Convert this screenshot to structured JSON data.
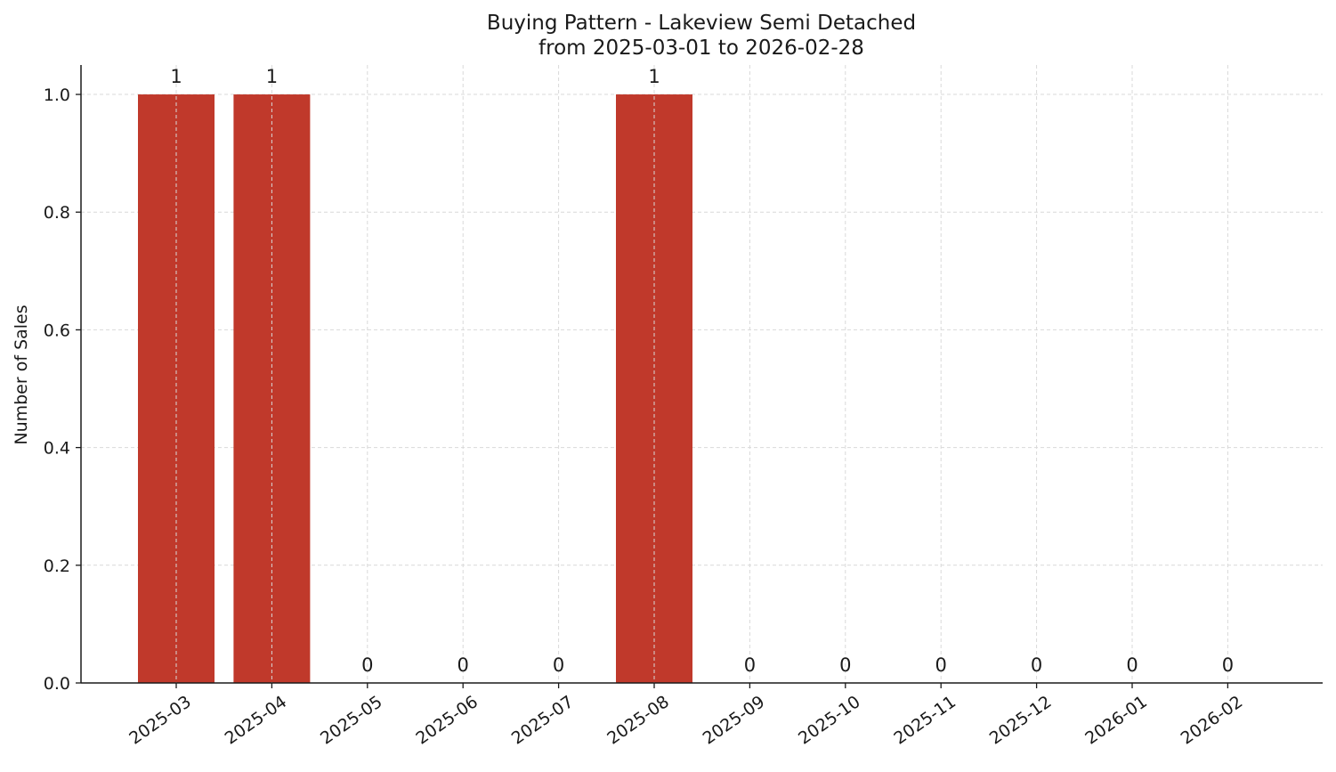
{
  "chart_data": {
    "type": "bar",
    "title": "Buying Pattern - Lakeview Semi Detached",
    "subtitle": "from 2025-03-01 to 2026-02-28",
    "xlabel": "",
    "ylabel": "Number of Sales",
    "categories": [
      "2025-03",
      "2025-04",
      "2025-05",
      "2025-06",
      "2025-07",
      "2025-08",
      "2025-09",
      "2025-10",
      "2025-11",
      "2025-12",
      "2026-01",
      "2026-02"
    ],
    "values": [
      1,
      1,
      0,
      0,
      0,
      1,
      0,
      0,
      0,
      0,
      0,
      0
    ],
    "data_labels": [
      "1",
      "1",
      "0",
      "0",
      "0",
      "1",
      "0",
      "0",
      "0",
      "0",
      "0",
      "0"
    ],
    "ylim": [
      0,
      1.05
    ],
    "yticks": [
      "0.0",
      "0.2",
      "0.4",
      "0.6",
      "0.8",
      "1.0"
    ],
    "ytick_values": [
      0,
      0.2,
      0.4,
      0.6,
      0.8,
      1.0
    ],
    "grid": true,
    "bar_color": "#c0392b",
    "grid_color": "#d9d9d9",
    "axis_color": "#1a1a1a"
  }
}
